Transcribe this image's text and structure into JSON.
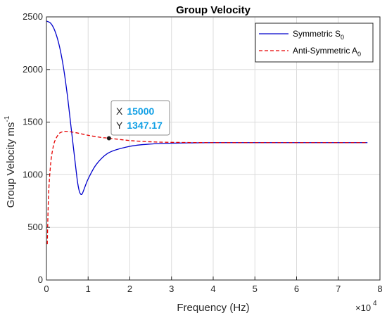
{
  "chart_data": {
    "type": "line",
    "title": "Group Velocity",
    "xlabel": "Frequency (Hz)",
    "ylabel": "Group Velocity ms",
    "ylabel_superscript": "-1",
    "x_exponent_base": "×10",
    "x_exponent_power": "4",
    "xlim": [
      0,
      8
    ],
    "ylim": [
      0,
      2500
    ],
    "x_unit_multiplier": 10000,
    "xticks": [
      "0",
      "1",
      "2",
      "3",
      "4",
      "5",
      "6",
      "7",
      "8"
    ],
    "yticks": [
      "0",
      "500",
      "1000",
      "1500",
      "2000",
      "2500"
    ],
    "grid": true,
    "legend_position": "top-right",
    "series": [
      {
        "name_main": "Symmetric S",
        "name_sub": "0",
        "color": "#0000cc",
        "style": "solid",
        "x": [
          0,
          0.1,
          0.2,
          0.3,
          0.4,
          0.5,
          0.6,
          0.7,
          0.75,
          0.8,
          0.85,
          0.9,
          1.0,
          1.2,
          1.5,
          2.0,
          2.5,
          3.0,
          3.5,
          4.0,
          5.0,
          6.0,
          7.0,
          7.7
        ],
        "y": [
          2460,
          2440,
          2370,
          2240,
          2040,
          1760,
          1420,
          1080,
          920,
          830,
          815,
          860,
          960,
          1100,
          1210,
          1270,
          1292,
          1300,
          1303,
          1305,
          1305,
          1305,
          1305,
          1305
        ]
      },
      {
        "name_main": "Anti-Symmetric A",
        "name_sub": "0",
        "color": "#e60000",
        "style": "dashed",
        "x": [
          0.02,
          0.05,
          0.1,
          0.15,
          0.2,
          0.3,
          0.4,
          0.5,
          0.7,
          1.0,
          1.3,
          1.5,
          2.0,
          2.5,
          3.0,
          4.0,
          5.0,
          6.0,
          7.0,
          7.7
        ],
        "y": [
          340,
          800,
          1100,
          1240,
          1320,
          1390,
          1410,
          1412,
          1400,
          1375,
          1355,
          1347.17,
          1325,
          1313,
          1308,
          1305,
          1305,
          1305,
          1305,
          1305
        ]
      }
    ],
    "datatip": {
      "x_label": "X",
      "x_value": "15000",
      "y_label": "Y",
      "y_value": "1347.17"
    }
  },
  "colors": {
    "grid": "#dcdcdc",
    "axis": "#262626",
    "datatip_value": "#0f9fe5"
  }
}
